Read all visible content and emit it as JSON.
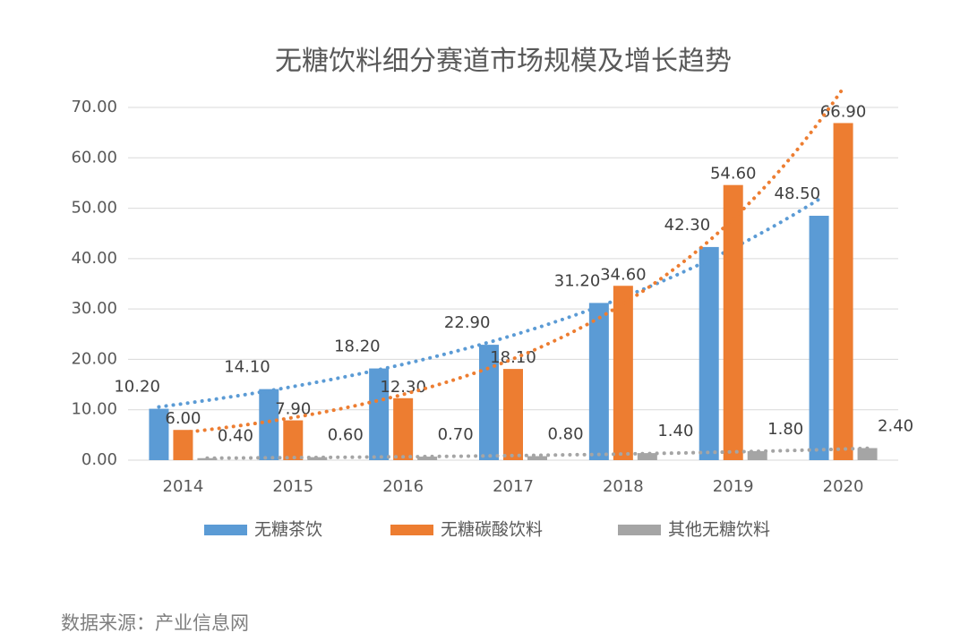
{
  "chart_data": {
    "type": "bar",
    "title": "无糖饮料细分赛道市场规模及增长趋势",
    "source": "数据来源：产业信息网",
    "categories": [
      "2014",
      "2015",
      "2016",
      "2017",
      "2018",
      "2019",
      "2020"
    ],
    "series": [
      {
        "name": "无糖茶饮",
        "color": "#5b9bd5",
        "values": [
          10.2,
          14.1,
          18.2,
          22.9,
          31.2,
          42.3,
          48.5
        ],
        "value_labels": [
          "10.20",
          "14.10",
          "18.20",
          "22.90",
          "31.20",
          "42.30",
          "48.50"
        ]
      },
      {
        "name": "无糖碳酸饮料",
        "color": "#ed7d31",
        "values": [
          6.0,
          7.9,
          12.3,
          18.1,
          34.6,
          54.6,
          66.9
        ],
        "value_labels": [
          "6.00",
          "7.90",
          "12.30",
          "18.10",
          "34.60",
          "54.60",
          "66.90"
        ]
      },
      {
        "name": "其他无糖饮料",
        "color": "#a5a5a5",
        "values": [
          0.4,
          0.6,
          0.7,
          0.8,
          1.4,
          1.8,
          2.4
        ],
        "value_labels": [
          "0.40",
          "0.60",
          "0.70",
          "0.80",
          "1.40",
          "1.80",
          "2.40"
        ]
      }
    ],
    "ylim": [
      0,
      70
    ],
    "yticks": [
      {
        "value": 0,
        "label": "0.00"
      },
      {
        "value": 10,
        "label": "10.00"
      },
      {
        "value": 20,
        "label": "20.00"
      },
      {
        "value": 30,
        "label": "30.00"
      },
      {
        "value": 40,
        "label": "40.00"
      },
      {
        "value": 50,
        "label": "50.00"
      },
      {
        "value": 60,
        "label": "60.00"
      },
      {
        "value": 70,
        "label": "70.00"
      }
    ],
    "grid": true,
    "trendlines": true,
    "legend": "bottom"
  }
}
